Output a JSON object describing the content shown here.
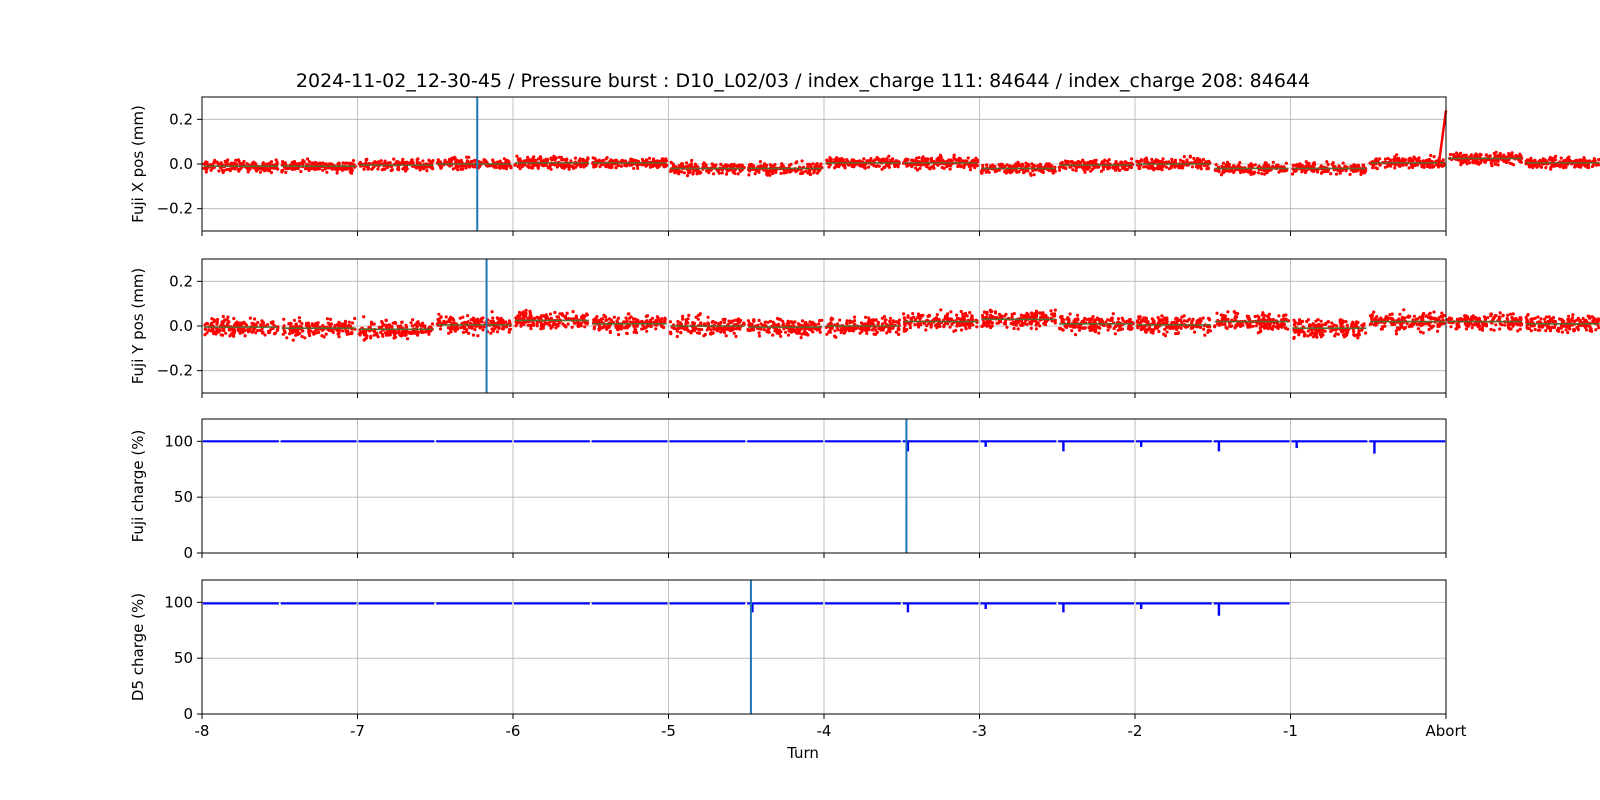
{
  "title": "2024-11-02_12-30-45 / Pressure burst : D10_L02/03 / index_charge 111: 84644 / index_charge 208: 84644",
  "xlabel": "Turn",
  "colors": {
    "scatter_red": "#ff0000",
    "trend": "#556b2f",
    "charge_blue": "#0000ff",
    "marker": "#1f77b4",
    "grid": "#b0b0b0"
  },
  "chart_data": [
    {
      "type": "scatter",
      "ylabel": "Fuji X pos (mm)",
      "xlim": [
        -8,
        0
      ],
      "ylim": [
        -0.3,
        0.3
      ],
      "yticks": [
        -0.2,
        0.0,
        0.2
      ],
      "ytick_labels": [
        "−0.2",
        "0.0",
        "0.2"
      ],
      "xticks": [
        -8,
        -7,
        -6,
        -5,
        -4,
        -3,
        -2,
        -1,
        0
      ],
      "xtick_labels": [],
      "marker_x": -6.23,
      "series": [
        {
          "kind": "scatter",
          "segment_means": [
            -0.01,
            -0.01,
            -0.005,
            0.0,
            0.005,
            0.005,
            -0.02,
            -0.02,
            0.005,
            0.005,
            -0.02,
            -0.005,
            0.0,
            -0.02,
            -0.02,
            0.005,
            0.025,
            0.005
          ],
          "spread": 0.022
        }
      ],
      "end_rise": {
        "from": [
          -0.05,
          -0.02
        ],
        "to": [
          0.0,
          0.24
        ]
      }
    },
    {
      "type": "scatter",
      "ylabel": "Fuji Y pos (mm)",
      "xlim": [
        -8,
        0
      ],
      "ylim": [
        -0.3,
        0.3
      ],
      "yticks": [
        -0.2,
        0.0,
        0.2
      ],
      "ytick_labels": [
        "−0.2",
        "0.0",
        "0.2"
      ],
      "xticks": [
        -8,
        -7,
        -6,
        -5,
        -4,
        -3,
        -2,
        -1,
        0
      ],
      "xtick_labels": [],
      "marker_x": -6.17,
      "series": [
        {
          "kind": "scatter",
          "segment_means": [
            -0.005,
            -0.01,
            -0.015,
            0.005,
            0.025,
            0.01,
            0.0,
            -0.005,
            0.0,
            0.02,
            0.03,
            0.01,
            0.005,
            0.02,
            -0.01,
            0.02,
            0.02,
            0.01
          ],
          "spread": 0.035
        }
      ]
    },
    {
      "type": "line",
      "ylabel": "Fuji charge (%)",
      "xlim": [
        -8,
        0
      ],
      "ylim": [
        0,
        120
      ],
      "yticks": [
        0,
        50,
        100
      ],
      "ytick_labels": [
        "0",
        "50",
        "100"
      ],
      "xticks": [
        -8,
        -7,
        -6,
        -5,
        -4,
        -3,
        -2,
        -1,
        0
      ],
      "xtick_labels": [],
      "marker_x": -3.47,
      "series": [
        {
          "kind": "charge",
          "level": 100,
          "x_end": 0,
          "dips": [
            [
              -3.47,
              91
            ],
            [
              -2.97,
              95
            ],
            [
              -2.47,
              91
            ],
            [
              -1.97,
              95
            ],
            [
              -1.47,
              91
            ],
            [
              -0.97,
              94
            ],
            [
              -0.47,
              89
            ]
          ]
        }
      ]
    },
    {
      "type": "line",
      "ylabel": "D5 charge (%)",
      "xlim": [
        -8,
        0
      ],
      "ylim": [
        0,
        120
      ],
      "yticks": [
        0,
        50,
        100
      ],
      "ytick_labels": [
        "0",
        "50",
        "100"
      ],
      "xticks": [
        -8,
        -7,
        -6,
        -5,
        -4,
        -3,
        -2,
        -1,
        0
      ],
      "xtick_labels": [
        "-8",
        "-7",
        "-6",
        "-5",
        "-4",
        "-3",
        "-2",
        "-1",
        "Abort"
      ],
      "marker_x": -4.47,
      "series": [
        {
          "kind": "charge",
          "level": 99,
          "x_end": -1,
          "dips": [
            [
              -4.47,
              91
            ],
            [
              -3.47,
              91
            ],
            [
              -2.97,
              94
            ],
            [
              -2.47,
              91
            ],
            [
              -1.97,
              94
            ],
            [
              -1.47,
              88
            ]
          ]
        }
      ]
    }
  ]
}
